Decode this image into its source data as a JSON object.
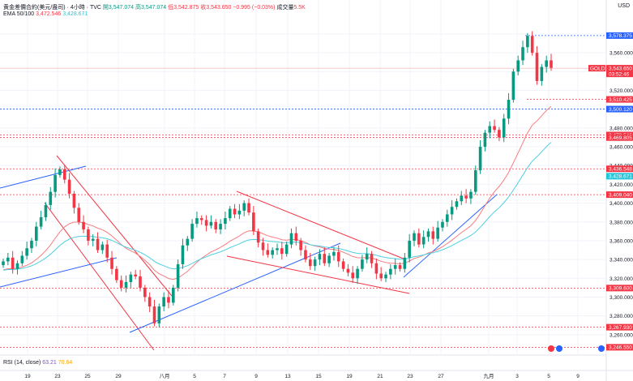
{
  "header": {
    "symbol_text": "黄金差價合約(美元/盎司) · 4小時 · TVC",
    "open_label": "開",
    "open": "3,547.074",
    "high_label": "高",
    "high": "3,547.074",
    "low_label": "低",
    "low": "3,542.875",
    "close_label": "收",
    "close": "3,543.650",
    "change": "−0.995 (−0.03%)",
    "volume_label": "成交量",
    "volume": "5.5K",
    "ema_label": "EMA 50/100",
    "ema50": "3,472.546",
    "ema100": "3,428.671"
  },
  "indicator": {
    "label": "RSI (14, close)",
    "value1": "63.21",
    "value2": "70.64"
  },
  "currency": "USD",
  "colors": {
    "up": "#089981",
    "down": "#f23645",
    "ema50": "#f77c80",
    "ema100": "#4dd0e1",
    "trend_blue": "#2962ff",
    "channel_red": "#f23645",
    "level_blue": "#2962ff",
    "level_red": "#f23645"
  },
  "chart_data": {
    "type": "candlestick",
    "y_range": [
      3240,
      3600
    ],
    "y_ticks": [
      3260,
      3280,
      3300,
      3320,
      3340,
      3360,
      3380,
      3400,
      3420,
      3440,
      3460,
      3480,
      3500,
      3520,
      3540,
      3560,
      3580
    ],
    "x_labels": [
      "19",
      "23",
      "25",
      "29",
      "八月",
      "5",
      "7",
      "9",
      "13",
      "15",
      "19",
      "21",
      "23",
      "27",
      "九月",
      "3",
      "5",
      "9"
    ],
    "price_labels": [
      {
        "value": 3578.375,
        "text": "3,578.375",
        "kind": "blue"
      },
      {
        "value": 3543.65,
        "text": "3,543.650",
        "kind": "symbol",
        "name": "GOLD",
        "countdown": "03:52:46"
      },
      {
        "value": 3510.425,
        "text": "3,510.425",
        "kind": "red"
      },
      {
        "value": 3500.12,
        "text": "3,500.120",
        "kind": "blue"
      },
      {
        "value": 3472.546,
        "text": "3,472.546",
        "kind": "red"
      },
      {
        "value": 3469.805,
        "text": "3,469.805",
        "kind": "red"
      },
      {
        "value": 3436.548,
        "text": "3,436.548",
        "kind": "red"
      },
      {
        "value": 3428.671,
        "text": "3,428.671",
        "kind": "cyan"
      },
      {
        "value": 3409.04,
        "text": "3,409.040",
        "kind": "red"
      },
      {
        "value": 3309.6,
        "text": "3,309.600",
        "kind": "red"
      },
      {
        "value": 3267.93,
        "text": "3,267.930",
        "kind": "red"
      },
      {
        "value": 3246.55,
        "text": "3,246.550",
        "kind": "red"
      }
    ],
    "candle_close_path": [
      3338,
      3342,
      3330,
      3336,
      3344,
      3352,
      3360,
      3375,
      3385,
      3398,
      3412,
      3430,
      3436,
      3425,
      3410,
      3395,
      3380,
      3372,
      3360,
      3362,
      3350,
      3356,
      3342,
      3330,
      3318,
      3310,
      3316,
      3324,
      3322,
      3310,
      3300,
      3290,
      3272,
      3290,
      3300,
      3294,
      3310,
      3335,
      3355,
      3362,
      3378,
      3384,
      3382,
      3376,
      3380,
      3372,
      3378,
      3384,
      3394,
      3388,
      3392,
      3400,
      3390,
      3370,
      3358,
      3350,
      3345,
      3350,
      3352,
      3346,
      3356,
      3368,
      3360,
      3350,
      3340,
      3333,
      3340,
      3346,
      3336,
      3344,
      3348,
      3338,
      3330,
      3326,
      3320,
      3330,
      3340,
      3346,
      3336,
      3325,
      3320,
      3324,
      3330,
      3334,
      3330,
      3342,
      3360,
      3368,
      3356,
      3364,
      3370,
      3362,
      3374,
      3380,
      3388,
      3396,
      3402,
      3408,
      3405,
      3412,
      3435,
      3460,
      3475,
      3482,
      3478,
      3470,
      3490,
      3510,
      3540,
      3552,
      3566,
      3578,
      3560,
      3530,
      3545,
      3552,
      3544
    ]
  }
}
